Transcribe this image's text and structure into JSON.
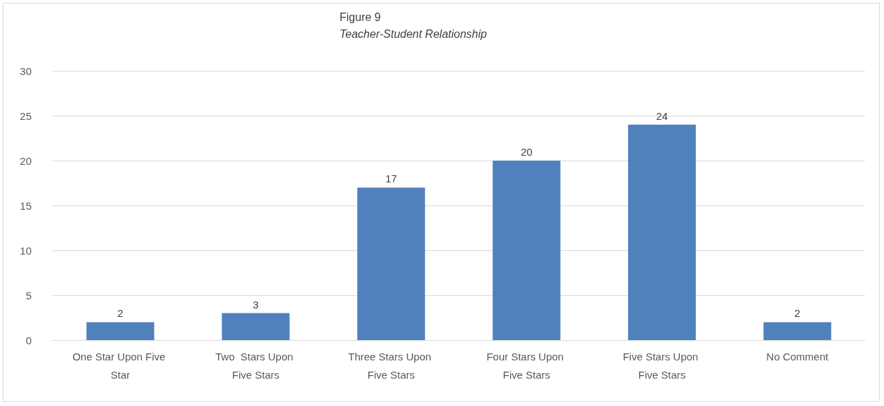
{
  "chart_data": {
    "type": "bar",
    "title": "Figure 9",
    "subtitle": "Teacher-Student Relationship",
    "categories": [
      "One Star Upon Five Star",
      "Two  Stars Upon Five Stars",
      "Three Stars Upon Five Stars",
      "Four Stars Upon Five Stars",
      "Five Stars Upon Five Stars",
      "No Comment"
    ],
    "values": [
      2,
      3,
      17,
      20,
      24,
      2
    ],
    "color": "#4f81bd",
    "ylim": [
      0,
      30
    ],
    "yticks": [
      0,
      5,
      10,
      15,
      20,
      25,
      30
    ],
    "grid": "y",
    "data_labels": true
  }
}
